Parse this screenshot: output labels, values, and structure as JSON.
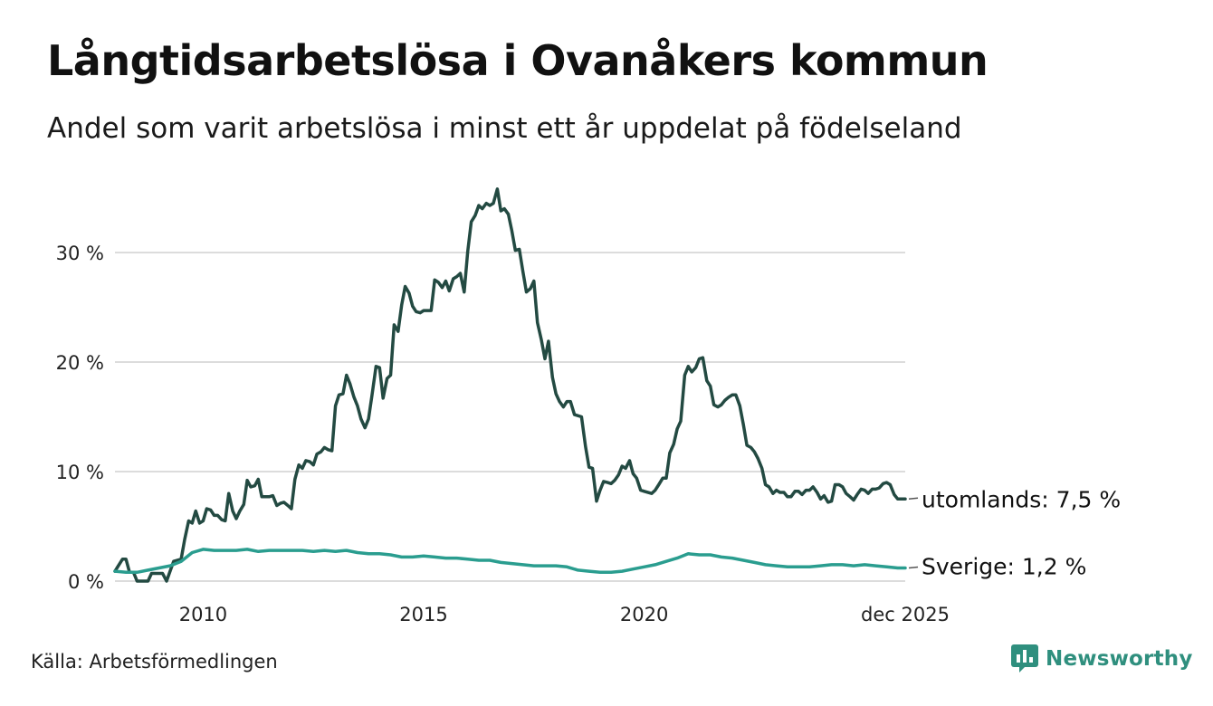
{
  "title": "Långtidsarbetslösa i Ovanåkers kommun",
  "subtitle": "Andel som varit arbetslösa i minst ett år uppdelat på födelseland",
  "source": "Källa: Arbetsförmedlingen",
  "brand": "Newsworthy",
  "colors": {
    "utomlands": "#234a42",
    "sverige": "#2a9d8f",
    "grid": "#dcdcdc",
    "brand": "#2f8f7e"
  },
  "chart_data": {
    "type": "line",
    "title": "Långtidsarbetslösa i Ovanåkers kommun",
    "xlabel": "",
    "ylabel": "",
    "ylim": [
      0,
      36
    ],
    "xlim": [
      2008.0,
      2025.92
    ],
    "grid": true,
    "y_ticks": [
      {
        "value": 0,
        "label": "0 %"
      },
      {
        "value": 10,
        "label": "10 %"
      },
      {
        "value": 20,
        "label": "20 %"
      },
      {
        "value": 30,
        "label": "30 %"
      }
    ],
    "x_ticks": [
      {
        "value": 2010,
        "label": "2010"
      },
      {
        "value": 2015,
        "label": "2015"
      },
      {
        "value": 2020,
        "label": "2020"
      },
      {
        "value": 2025.92,
        "label": "dec 2025"
      }
    ],
    "series": [
      {
        "name": "utomlands",
        "label": "utomlands: 7,5 %",
        "last_value": 7.5,
        "points": [
          [
            2008.0,
            0.9
          ],
          [
            2008.17,
            2.0
          ],
          [
            2008.25,
            2.0
          ],
          [
            2008.33,
            0.8
          ],
          [
            2008.42,
            0.8
          ],
          [
            2008.5,
            0.0
          ],
          [
            2008.75,
            0.0
          ],
          [
            2008.83,
            0.7
          ],
          [
            2009.08,
            0.7
          ],
          [
            2009.17,
            0.0
          ],
          [
            2009.33,
            1.8
          ],
          [
            2009.5,
            2.0
          ],
          [
            2009.58,
            3.8
          ],
          [
            2009.67,
            5.5
          ],
          [
            2009.75,
            5.3
          ],
          [
            2009.83,
            6.4
          ],
          [
            2009.92,
            5.3
          ],
          [
            2010.0,
            5.5
          ],
          [
            2010.08,
            6.6
          ],
          [
            2010.17,
            6.5
          ],
          [
            2010.25,
            6.0
          ],
          [
            2010.33,
            6.0
          ],
          [
            2010.42,
            5.6
          ],
          [
            2010.5,
            5.5
          ],
          [
            2010.58,
            8.0
          ],
          [
            2010.67,
            6.4
          ],
          [
            2010.75,
            5.7
          ],
          [
            2010.83,
            6.4
          ],
          [
            2010.92,
            7.0
          ],
          [
            2011.0,
            9.2
          ],
          [
            2011.08,
            8.6
          ],
          [
            2011.17,
            8.7
          ],
          [
            2011.25,
            9.3
          ],
          [
            2011.33,
            7.7
          ],
          [
            2011.5,
            7.7
          ],
          [
            2011.58,
            7.8
          ],
          [
            2011.67,
            6.9
          ],
          [
            2011.75,
            7.1
          ],
          [
            2011.83,
            7.2
          ],
          [
            2011.92,
            6.9
          ],
          [
            2012.0,
            6.6
          ],
          [
            2012.08,
            9.3
          ],
          [
            2012.17,
            10.6
          ],
          [
            2012.25,
            10.3
          ],
          [
            2012.33,
            11.0
          ],
          [
            2012.42,
            10.9
          ],
          [
            2012.5,
            10.6
          ],
          [
            2012.58,
            11.6
          ],
          [
            2012.67,
            11.8
          ],
          [
            2012.75,
            12.2
          ],
          [
            2012.83,
            12.0
          ],
          [
            2012.92,
            11.9
          ],
          [
            2013.0,
            16.0
          ],
          [
            2013.08,
            17.0
          ],
          [
            2013.17,
            17.1
          ],
          [
            2013.25,
            18.8
          ],
          [
            2013.33,
            18.0
          ],
          [
            2013.42,
            16.8
          ],
          [
            2013.5,
            16.0
          ],
          [
            2013.58,
            14.8
          ],
          [
            2013.67,
            14.0
          ],
          [
            2013.75,
            14.8
          ],
          [
            2013.83,
            17.0
          ],
          [
            2013.92,
            19.6
          ],
          [
            2014.0,
            19.5
          ],
          [
            2014.08,
            16.7
          ],
          [
            2014.17,
            18.5
          ],
          [
            2014.25,
            18.8
          ],
          [
            2014.33,
            23.4
          ],
          [
            2014.42,
            22.8
          ],
          [
            2014.5,
            25.2
          ],
          [
            2014.58,
            26.9
          ],
          [
            2014.67,
            26.3
          ],
          [
            2014.75,
            25.1
          ],
          [
            2014.83,
            24.6
          ],
          [
            2014.92,
            24.5
          ],
          [
            2015.0,
            24.7
          ],
          [
            2015.17,
            24.7
          ],
          [
            2015.25,
            27.5
          ],
          [
            2015.33,
            27.3
          ],
          [
            2015.42,
            26.8
          ],
          [
            2015.5,
            27.4
          ],
          [
            2015.58,
            26.5
          ],
          [
            2015.67,
            27.6
          ],
          [
            2015.75,
            27.8
          ],
          [
            2015.83,
            28.1
          ],
          [
            2015.92,
            26.4
          ],
          [
            2016.0,
            30.1
          ],
          [
            2016.08,
            32.8
          ],
          [
            2016.17,
            33.4
          ],
          [
            2016.25,
            34.3
          ],
          [
            2016.33,
            34.0
          ],
          [
            2016.42,
            34.5
          ],
          [
            2016.5,
            34.3
          ],
          [
            2016.58,
            34.5
          ],
          [
            2016.67,
            35.8
          ],
          [
            2016.75,
            33.8
          ],
          [
            2016.83,
            34.0
          ],
          [
            2016.92,
            33.5
          ],
          [
            2017.0,
            32.0
          ],
          [
            2017.08,
            30.2
          ],
          [
            2017.17,
            30.3
          ],
          [
            2017.25,
            28.3
          ],
          [
            2017.33,
            26.4
          ],
          [
            2017.42,
            26.7
          ],
          [
            2017.5,
            27.4
          ],
          [
            2017.58,
            23.6
          ],
          [
            2017.67,
            22.0
          ],
          [
            2017.75,
            20.3
          ],
          [
            2017.83,
            21.9
          ],
          [
            2017.92,
            18.6
          ],
          [
            2018.0,
            17.1
          ],
          [
            2018.08,
            16.4
          ],
          [
            2018.17,
            15.9
          ],
          [
            2018.25,
            16.4
          ],
          [
            2018.33,
            16.4
          ],
          [
            2018.42,
            15.2
          ],
          [
            2018.58,
            15.0
          ],
          [
            2018.67,
            12.3
          ],
          [
            2018.75,
            10.4
          ],
          [
            2018.83,
            10.3
          ],
          [
            2018.92,
            7.3
          ],
          [
            2019.0,
            8.3
          ],
          [
            2019.08,
            9.1
          ],
          [
            2019.17,
            9.0
          ],
          [
            2019.25,
            8.9
          ],
          [
            2019.33,
            9.2
          ],
          [
            2019.42,
            9.7
          ],
          [
            2019.5,
            10.5
          ],
          [
            2019.58,
            10.3
          ],
          [
            2019.67,
            11.0
          ],
          [
            2019.75,
            9.8
          ],
          [
            2019.83,
            9.4
          ],
          [
            2019.92,
            8.3
          ],
          [
            2020.0,
            8.2
          ],
          [
            2020.17,
            8.0
          ],
          [
            2020.25,
            8.3
          ],
          [
            2020.33,
            8.8
          ],
          [
            2020.42,
            9.4
          ],
          [
            2020.5,
            9.4
          ],
          [
            2020.58,
            11.7
          ],
          [
            2020.67,
            12.5
          ],
          [
            2020.75,
            13.9
          ],
          [
            2020.83,
            14.6
          ],
          [
            2020.92,
            18.8
          ],
          [
            2021.0,
            19.6
          ],
          [
            2021.08,
            19.1
          ],
          [
            2021.17,
            19.5
          ],
          [
            2021.25,
            20.3
          ],
          [
            2021.33,
            20.4
          ],
          [
            2021.42,
            18.3
          ],
          [
            2021.5,
            17.8
          ],
          [
            2021.58,
            16.1
          ],
          [
            2021.67,
            15.9
          ],
          [
            2021.75,
            16.1
          ],
          [
            2021.83,
            16.5
          ],
          [
            2021.92,
            16.8
          ],
          [
            2022.0,
            17.0
          ],
          [
            2022.08,
            17.0
          ],
          [
            2022.17,
            16.0
          ],
          [
            2022.25,
            14.3
          ],
          [
            2022.33,
            12.4
          ],
          [
            2022.42,
            12.2
          ],
          [
            2022.5,
            11.8
          ],
          [
            2022.58,
            11.2
          ],
          [
            2022.67,
            10.3
          ],
          [
            2022.75,
            8.8
          ],
          [
            2022.83,
            8.6
          ],
          [
            2022.92,
            8.0
          ],
          [
            2023.0,
            8.3
          ],
          [
            2023.08,
            8.1
          ],
          [
            2023.17,
            8.1
          ],
          [
            2023.25,
            7.7
          ],
          [
            2023.33,
            7.7
          ],
          [
            2023.42,
            8.2
          ],
          [
            2023.5,
            8.2
          ],
          [
            2023.58,
            7.9
          ],
          [
            2023.67,
            8.3
          ],
          [
            2023.75,
            8.3
          ],
          [
            2023.83,
            8.6
          ],
          [
            2023.92,
            8.1
          ],
          [
            2024.0,
            7.5
          ],
          [
            2024.08,
            7.8
          ],
          [
            2024.17,
            7.2
          ],
          [
            2024.25,
            7.3
          ],
          [
            2024.33,
            8.8
          ],
          [
            2024.42,
            8.8
          ],
          [
            2024.5,
            8.6
          ],
          [
            2024.58,
            8.0
          ],
          [
            2024.67,
            7.7
          ],
          [
            2024.75,
            7.4
          ],
          [
            2024.83,
            7.9
          ],
          [
            2024.92,
            8.4
          ],
          [
            2025.0,
            8.3
          ],
          [
            2025.08,
            8.0
          ],
          [
            2025.17,
            8.4
          ],
          [
            2025.25,
            8.4
          ],
          [
            2025.33,
            8.5
          ],
          [
            2025.42,
            8.9
          ],
          [
            2025.5,
            9.0
          ],
          [
            2025.58,
            8.8
          ],
          [
            2025.67,
            7.9
          ],
          [
            2025.75,
            7.5
          ],
          [
            2025.92,
            7.5
          ]
        ]
      },
      {
        "name": "Sverige",
        "label": "Sverige: 1,2 %",
        "last_value": 1.2,
        "points": [
          [
            2008.0,
            0.9
          ],
          [
            2008.25,
            0.8
          ],
          [
            2008.5,
            0.8
          ],
          [
            2008.75,
            1.0
          ],
          [
            2009.0,
            1.2
          ],
          [
            2009.25,
            1.4
          ],
          [
            2009.5,
            1.8
          ],
          [
            2009.75,
            2.6
          ],
          [
            2010.0,
            2.9
          ],
          [
            2010.25,
            2.8
          ],
          [
            2010.5,
            2.8
          ],
          [
            2010.75,
            2.8
          ],
          [
            2011.0,
            2.9
          ],
          [
            2011.25,
            2.7
          ],
          [
            2011.5,
            2.8
          ],
          [
            2011.75,
            2.8
          ],
          [
            2012.0,
            2.8
          ],
          [
            2012.25,
            2.8
          ],
          [
            2012.5,
            2.7
          ],
          [
            2012.75,
            2.8
          ],
          [
            2013.0,
            2.7
          ],
          [
            2013.25,
            2.8
          ],
          [
            2013.5,
            2.6
          ],
          [
            2013.75,
            2.5
          ],
          [
            2014.0,
            2.5
          ],
          [
            2014.25,
            2.4
          ],
          [
            2014.5,
            2.2
          ],
          [
            2014.75,
            2.2
          ],
          [
            2015.0,
            2.3
          ],
          [
            2015.25,
            2.2
          ],
          [
            2015.5,
            2.1
          ],
          [
            2015.75,
            2.1
          ],
          [
            2016.0,
            2.0
          ],
          [
            2016.25,
            1.9
          ],
          [
            2016.5,
            1.9
          ],
          [
            2016.75,
            1.7
          ],
          [
            2017.0,
            1.6
          ],
          [
            2017.25,
            1.5
          ],
          [
            2017.5,
            1.4
          ],
          [
            2017.75,
            1.4
          ],
          [
            2018.0,
            1.4
          ],
          [
            2018.25,
            1.3
          ],
          [
            2018.5,
            1.0
          ],
          [
            2018.75,
            0.9
          ],
          [
            2019.0,
            0.8
          ],
          [
            2019.25,
            0.8
          ],
          [
            2019.5,
            0.9
          ],
          [
            2019.75,
            1.1
          ],
          [
            2020.0,
            1.3
          ],
          [
            2020.25,
            1.5
          ],
          [
            2020.5,
            1.8
          ],
          [
            2020.75,
            2.1
          ],
          [
            2021.0,
            2.5
          ],
          [
            2021.25,
            2.4
          ],
          [
            2021.5,
            2.4
          ],
          [
            2021.75,
            2.2
          ],
          [
            2022.0,
            2.1
          ],
          [
            2022.25,
            1.9
          ],
          [
            2022.5,
            1.7
          ],
          [
            2022.75,
            1.5
          ],
          [
            2023.0,
            1.4
          ],
          [
            2023.25,
            1.3
          ],
          [
            2023.5,
            1.3
          ],
          [
            2023.75,
            1.3
          ],
          [
            2024.0,
            1.4
          ],
          [
            2024.25,
            1.5
          ],
          [
            2024.5,
            1.5
          ],
          [
            2024.75,
            1.4
          ],
          [
            2025.0,
            1.5
          ],
          [
            2025.25,
            1.4
          ],
          [
            2025.5,
            1.3
          ],
          [
            2025.75,
            1.2
          ],
          [
            2025.92,
            1.2
          ]
        ]
      }
    ]
  }
}
